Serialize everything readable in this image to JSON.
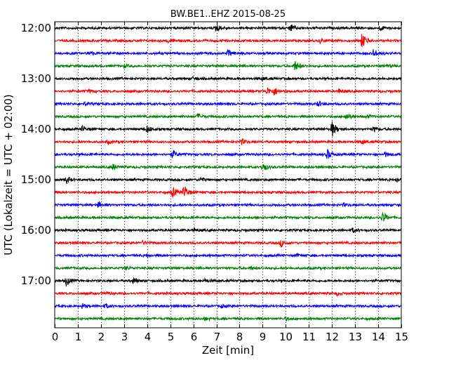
{
  "chart_data": {
    "type": "line",
    "title": "BW.BE1..EHZ 2015-08-25",
    "xlabel": "Zeit  [min]",
    "ylabel": "UTC (Lokalzeit = UTC + 02:00)",
    "xlim": [
      0,
      15
    ],
    "x_ticks": [
      "0",
      "1",
      "2",
      "3",
      "4",
      "5",
      "6",
      "7",
      "8",
      "9",
      "10",
      "11",
      "12",
      "13",
      "14",
      "15"
    ],
    "y_tick_labels": [
      "12:00",
      "13:00",
      "14:00",
      "15:00",
      "16:00",
      "17:00"
    ],
    "vertical_grid": "dotted",
    "trace_interval_minutes": 15,
    "colors": [
      "#000000",
      "#ff0000",
      "#0000ff",
      "#008000"
    ],
    "traces": [
      {
        "start": "12:00",
        "events": [
          [
            7.0,
            6
          ],
          [
            10.2,
            5
          ],
          [
            14.1,
            3
          ]
        ]
      },
      {
        "start": "12:15",
        "events": [
          [
            4.9,
            3
          ],
          [
            11.5,
            3
          ],
          [
            13.3,
            11
          ]
        ]
      },
      {
        "start": "12:30",
        "events": [
          [
            1.5,
            3
          ],
          [
            7.5,
            5
          ],
          [
            13.8,
            6
          ]
        ]
      },
      {
        "start": "12:45",
        "events": [
          [
            3.0,
            2
          ],
          [
            10.4,
            7
          ],
          [
            14.3,
            3
          ]
        ]
      },
      {
        "start": "13:00",
        "events": [
          [
            6.0,
            2
          ],
          [
            9.0,
            2
          ]
        ]
      },
      {
        "start": "13:15",
        "events": [
          [
            1.5,
            2
          ],
          [
            9.2,
            5
          ],
          [
            9.5,
            5
          ],
          [
            12.3,
            3
          ]
        ]
      },
      {
        "start": "13:30",
        "events": [
          [
            1.3,
            2
          ],
          [
            11.4,
            4
          ]
        ]
      },
      {
        "start": "13:45",
        "events": [
          [
            6.2,
            4
          ],
          [
            12.6,
            5
          ],
          [
            13.5,
            2
          ]
        ]
      },
      {
        "start": "14:00",
        "events": [
          [
            1.2,
            4
          ],
          [
            4.0,
            5
          ],
          [
            12.0,
            11
          ],
          [
            13.8,
            3
          ]
        ]
      },
      {
        "start": "14:15",
        "events": [
          [
            2.3,
            2
          ],
          [
            8.1,
            4
          ],
          [
            13.3,
            3
          ]
        ]
      },
      {
        "start": "14:30",
        "events": [
          [
            5.1,
            6
          ],
          [
            11.8,
            7
          ],
          [
            14.3,
            3
          ]
        ]
      },
      {
        "start": "14:45",
        "events": [
          [
            2.5,
            4
          ],
          [
            9.0,
            7
          ]
        ]
      },
      {
        "start": "15:00",
        "events": [
          [
            0.5,
            5
          ],
          [
            6.3,
            3
          ],
          [
            14.8,
            3
          ]
        ]
      },
      {
        "start": "15:15",
        "events": [
          [
            5.1,
            7
          ],
          [
            5.6,
            10
          ]
        ]
      },
      {
        "start": "15:30",
        "events": [
          [
            1.9,
            4
          ],
          [
            12.5,
            2
          ]
        ]
      },
      {
        "start": "15:45",
        "events": [
          [
            8.8,
            2
          ],
          [
            14.2,
            8
          ]
        ]
      },
      {
        "start": "16:00",
        "events": [
          [
            6.0,
            2
          ],
          [
            12.9,
            3
          ]
        ]
      },
      {
        "start": "16:15",
        "events": [
          [
            3.8,
            2
          ],
          [
            9.8,
            5
          ]
        ]
      },
      {
        "start": "16:30",
        "events": [
          [
            4.0,
            2
          ],
          [
            10.5,
            2
          ]
        ]
      },
      {
        "start": "16:45",
        "events": [
          [
            3.1,
            2
          ],
          [
            8.5,
            2
          ]
        ]
      },
      {
        "start": "17:00",
        "events": [
          [
            0.5,
            7
          ],
          [
            3.4,
            4
          ],
          [
            6.5,
            2
          ]
        ]
      },
      {
        "start": "17:15",
        "events": [
          [
            2.2,
            2
          ],
          [
            12.2,
            2
          ]
        ]
      },
      {
        "start": "17:30",
        "events": [
          [
            1.2,
            3
          ],
          [
            2.2,
            3
          ],
          [
            7.2,
            2
          ]
        ]
      },
      {
        "start": "17:45",
        "events": [
          [
            6.5,
            2
          ],
          [
            10.0,
            2
          ]
        ]
      }
    ]
  }
}
